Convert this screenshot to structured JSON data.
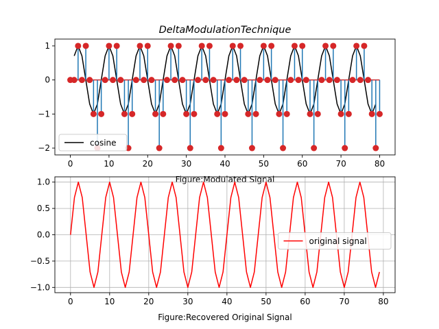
{
  "figure": {
    "title": "DeltaModulationTechnique"
  },
  "chart_data": [
    {
      "type": "line",
      "title": "DeltaModulationTechnique",
      "xlabel": "Figure:Modulated Signal",
      "ylabel": "",
      "xlim": [
        -4,
        84
      ],
      "ylim": [
        -2.2,
        1.2
      ],
      "xticks": [
        0,
        10,
        20,
        30,
        40,
        50,
        60,
        70,
        80
      ],
      "yticks": [
        -2,
        -1,
        0,
        1
      ],
      "grid": false,
      "legend": {
        "position": "lower-left",
        "entries": [
          "cosine"
        ]
      },
      "series": [
        {
          "name": "cosine",
          "kind": "line",
          "color": "#000000",
          "x": [
            1,
            2,
            3,
            4,
            5,
            6,
            7,
            8,
            9,
            10,
            11,
            12,
            13,
            14,
            15,
            16,
            17,
            18,
            19,
            20,
            21,
            22,
            23,
            24,
            25,
            26,
            27,
            28,
            29,
            30,
            31,
            32,
            33,
            34,
            35,
            36,
            37,
            38,
            39,
            40,
            41,
            42,
            43,
            44,
            45,
            46,
            47,
            48,
            49,
            50,
            51,
            52,
            53,
            54,
            55,
            56,
            57,
            58,
            59,
            60,
            61,
            62,
            63,
            64,
            65,
            66,
            67,
            68,
            69,
            70,
            71,
            72,
            73,
            74,
            75,
            76,
            77,
            78,
            79
          ],
          "y": [
            0.707,
            1.0,
            0.707,
            0.0,
            -0.707,
            -1.0,
            -0.707,
            0.0,
            0.707,
            1.0,
            0.707,
            0.0,
            -0.707,
            -1.0,
            -0.707,
            0.0,
            0.707,
            1.0,
            0.707,
            0.0,
            -0.707,
            -1.0,
            -0.707,
            0.0,
            0.707,
            1.0,
            0.707,
            0.0,
            -0.707,
            -1.0,
            -0.707,
            0.0,
            0.707,
            1.0,
            0.707,
            0.0,
            -0.707,
            -1.0,
            -0.707,
            0.0,
            0.707,
            1.0,
            0.707,
            0.0,
            -0.707,
            -1.0,
            -0.707,
            0.0,
            0.707,
            1.0,
            0.707,
            0.0,
            -0.707,
            -1.0,
            -0.707,
            0.0,
            0.707,
            1.0,
            0.707,
            0.0,
            -0.707,
            -1.0,
            -0.707,
            0.0,
            0.707,
            1.0,
            0.707,
            0.0,
            -0.707,
            -1.0,
            -0.707,
            0.0,
            0.707,
            1.0,
            0.707,
            0.0,
            -0.707,
            -1.0,
            -0.707
          ]
        },
        {
          "name": "",
          "kind": "stem",
          "color": "#1f77b4",
          "marker_color": "#d62728",
          "x": [
            0,
            1,
            2,
            3,
            4,
            5,
            6,
            7,
            8,
            9,
            10,
            11,
            12,
            13,
            14,
            15,
            16,
            17,
            18,
            19,
            20,
            21,
            22,
            23,
            24,
            25,
            26,
            27,
            28,
            29,
            30,
            31,
            32,
            33,
            34,
            35,
            36,
            37,
            38,
            39,
            40,
            41,
            42,
            43,
            44,
            45,
            46,
            47,
            48,
            49,
            50,
            51,
            52,
            53,
            54,
            55,
            56,
            57,
            58,
            59,
            60,
            61,
            62,
            63,
            64,
            65,
            66,
            67,
            68,
            69,
            70,
            71,
            72,
            73,
            74,
            75,
            76,
            77,
            78,
            79,
            80
          ],
          "y": [
            0,
            0,
            1,
            0,
            1,
            0,
            -1,
            -2,
            -1,
            0,
            1,
            0,
            1,
            0,
            -1,
            -2,
            -1,
            0,
            1,
            0,
            1,
            0,
            -1,
            -2,
            -1,
            0,
            1,
            0,
            1,
            0,
            -1,
            -2,
            -1,
            0,
            1,
            0,
            1,
            0,
            -1,
            -2,
            -1,
            0,
            1,
            0,
            1,
            0,
            -1,
            -2,
            -1,
            0,
            1,
            0,
            1,
            0,
            -1,
            -2,
            -1,
            0,
            1,
            0,
            1,
            0,
            -1,
            -2,
            -1,
            0,
            1,
            0,
            1,
            0,
            -1,
            -2,
            -1,
            0,
            1,
            0,
            1,
            0,
            -1,
            -2,
            -1
          ]
        }
      ]
    },
    {
      "type": "line",
      "title": "",
      "xlabel": "Figure:Recovered Original Signal",
      "ylabel": "",
      "xlim": [
        -4,
        83
      ],
      "ylim": [
        -1.1,
        1.1
      ],
      "xticks": [
        0,
        10,
        20,
        30,
        40,
        50,
        60,
        70,
        80
      ],
      "yticks": [
        -1.0,
        -0.5,
        0.0,
        0.5,
        1.0
      ],
      "grid": true,
      "legend": {
        "position": "center-right",
        "entries": [
          "original signal"
        ]
      },
      "series": [
        {
          "name": "original signal",
          "kind": "line",
          "color": "#ff0000",
          "x": [
            0,
            1,
            2,
            3,
            4,
            5,
            6,
            7,
            8,
            9,
            10,
            11,
            12,
            13,
            14,
            15,
            16,
            17,
            18,
            19,
            20,
            21,
            22,
            23,
            24,
            25,
            26,
            27,
            28,
            29,
            30,
            31,
            32,
            33,
            34,
            35,
            36,
            37,
            38,
            39,
            40,
            41,
            42,
            43,
            44,
            45,
            46,
            47,
            48,
            49,
            50,
            51,
            52,
            53,
            54,
            55,
            56,
            57,
            58,
            59,
            60,
            61,
            62,
            63,
            64,
            65,
            66,
            67,
            68,
            69,
            70,
            71,
            72,
            73,
            74,
            75,
            76,
            77,
            78,
            79
          ],
          "y": [
            0.0,
            0.707,
            1.0,
            0.707,
            0.0,
            -0.707,
            -1.0,
            -0.707,
            0.0,
            0.707,
            1.0,
            0.707,
            0.0,
            -0.707,
            -1.0,
            -0.707,
            0.0,
            0.707,
            1.0,
            0.707,
            0.0,
            -0.707,
            -1.0,
            -0.707,
            0.0,
            0.707,
            1.0,
            0.707,
            0.0,
            -0.707,
            -1.0,
            -0.707,
            0.0,
            0.707,
            1.0,
            0.707,
            0.0,
            -0.707,
            -1.0,
            -0.707,
            0.0,
            0.707,
            1.0,
            0.707,
            0.0,
            -0.707,
            -1.0,
            -0.707,
            0.0,
            0.707,
            1.0,
            0.707,
            0.0,
            -0.707,
            -1.0,
            -0.707,
            0.0,
            0.707,
            1.0,
            0.707,
            0.0,
            -0.707,
            -1.0,
            -0.707,
            0.0,
            0.707,
            1.0,
            0.707,
            0.0,
            -0.707,
            -1.0,
            -0.707,
            0.0,
            0.707,
            1.0,
            0.707,
            0.0,
            -0.707,
            -1.0,
            -0.707
          ]
        }
      ]
    }
  ]
}
